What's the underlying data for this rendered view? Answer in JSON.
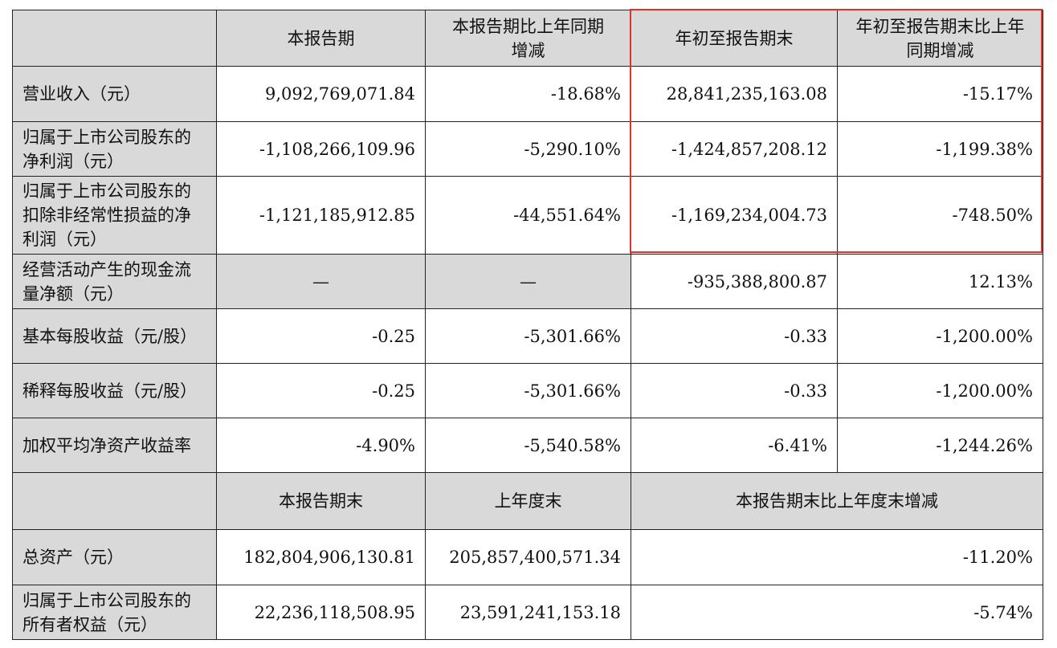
{
  "header1": [
    "",
    "本报告期",
    "本报告期比上年同期增减",
    "年初至报告期末",
    "年初至报告期末比上年同期增减"
  ],
  "rows1": [
    {
      "label": "营业收入（元）",
      "c1": "9,092,769,071.84",
      "c2": "-18.68%",
      "c3": "28,841,235,163.08",
      "c4": "-15.17%"
    },
    {
      "label": "归属于上市公司股东的净利润（元）",
      "c1": "-1,108,266,109.96",
      "c2": "-5,290.10%",
      "c3": "-1,424,857,208.12",
      "c4": "-1,199.38%"
    },
    {
      "label": "归属于上市公司股东的扣除非经常性损益的净利润（元）",
      "c1": "-1,121,185,912.85",
      "c2": "-44,551.64%",
      "c3": "-1,169,234,004.73",
      "c4": "-748.50%"
    },
    {
      "label": "经营活动产生的现金流量净额（元）",
      "c1": "—",
      "c2": "—",
      "c3": "-935,388,800.87",
      "c4": "12.13%"
    },
    {
      "label": "基本每股收益（元/股）",
      "c1": "-0.25",
      "c2": "-5,301.66%",
      "c3": "-0.33",
      "c4": "-1,200.00%"
    },
    {
      "label": "稀释每股收益（元/股）",
      "c1": "-0.25",
      "c2": "-5,301.66%",
      "c3": "-0.33",
      "c4": "-1,200.00%"
    },
    {
      "label": "加权平均净资产收益率",
      "c1": "-4.90%",
      "c2": "-5,540.58%",
      "c3": "-6.41%",
      "c4": "-1,244.26%"
    }
  ],
  "header2": [
    "",
    "本报告期末",
    "上年度末",
    "本报告期末比上年度末增减"
  ],
  "rows2": [
    {
      "label": "总资产（元）",
      "c1": "182,804,906,130.81",
      "c2": "205,857,400,571.34",
      "c3": "-11.20%"
    },
    {
      "label": "归属于上市公司股东的所有者权益（元）",
      "c1": "22,236,118,508.95",
      "c2": "23,591,241,153.18",
      "c3": "-5.74%"
    }
  ],
  "colors": {
    "header_bg": "#d9d9d9",
    "highlight_border": "#e0322d",
    "grid": "#222222"
  }
}
